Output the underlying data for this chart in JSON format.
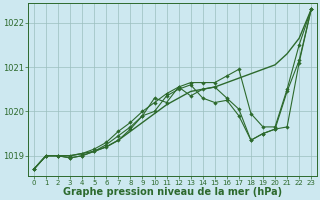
{
  "background_color": "#cde8f0",
  "plot_bg_color": "#cde8f0",
  "grid_color": "#9bbfbf",
  "line_color": "#2d6a2d",
  "xlabel": "Graphe pression niveau de la mer (hPa)",
  "xlabel_fontsize": 7,
  "ylim": [
    1018.55,
    1022.45
  ],
  "xlim": [
    -0.5,
    23.5
  ],
  "yticks": [
    1019,
    1020,
    1021,
    1022
  ],
  "xticks": [
    0,
    1,
    2,
    3,
    4,
    5,
    6,
    7,
    8,
    9,
    10,
    11,
    12,
    13,
    14,
    15,
    16,
    17,
    18,
    19,
    20,
    21,
    22,
    23
  ],
  "series": [
    {
      "y": [
        1018.7,
        1019.0,
        1019.0,
        1019.0,
        1019.05,
        1019.1,
        1019.2,
        1019.35,
        1019.55,
        1019.75,
        1019.95,
        1020.15,
        1020.3,
        1020.45,
        1020.5,
        1020.55,
        1020.65,
        1020.75,
        1020.85,
        1020.95,
        1021.05,
        1021.3,
        1021.65,
        1022.3
      ],
      "markers": false,
      "linewidth": 1.0
    },
    {
      "y": [
        1018.7,
        1019.0,
        1019.0,
        1018.95,
        1019.0,
        1019.1,
        1019.2,
        1019.35,
        1019.6,
        1019.9,
        1020.3,
        1020.2,
        1020.55,
        1020.35,
        1020.5,
        1020.55,
        1020.3,
        1020.05,
        1019.35,
        1019.5,
        1019.6,
        1019.65,
        1021.1,
        1022.3
      ],
      "markers": true,
      "linewidth": 0.8
    },
    {
      "y": [
        1018.7,
        1019.0,
        1019.0,
        1018.95,
        1019.0,
        1019.1,
        1019.25,
        1019.45,
        1019.65,
        1019.9,
        1020.0,
        1020.35,
        1020.5,
        1020.6,
        1020.3,
        1020.2,
        1020.25,
        1019.9,
        1019.35,
        1019.5,
        1019.6,
        1020.45,
        1021.15,
        1022.3
      ],
      "markers": true,
      "linewidth": 0.8
    },
    {
      "y": [
        1018.7,
        1019.0,
        1019.0,
        1019.0,
        1019.05,
        1019.15,
        1019.3,
        1019.55,
        1019.75,
        1020.0,
        1020.2,
        1020.4,
        1020.55,
        1020.65,
        1020.65,
        1020.65,
        1020.8,
        1020.95,
        1019.95,
        1019.65,
        1019.65,
        1020.5,
        1021.5,
        1022.3
      ],
      "markers": true,
      "linewidth": 0.8
    }
  ]
}
